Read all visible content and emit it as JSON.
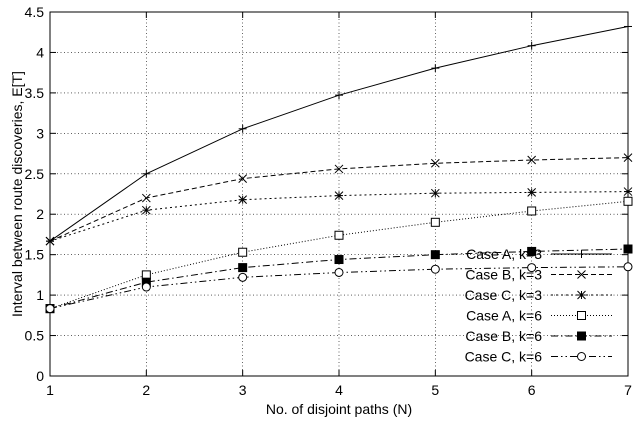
{
  "chart_data": {
    "type": "line",
    "title": "",
    "xlabel": "No. of disjoint paths (N)",
    "ylabel": "Interval between route discoveries, E[T]",
    "xlim": [
      1,
      7
    ],
    "ylim": [
      0,
      4.5
    ],
    "xticks": [
      1,
      2,
      3,
      4,
      5,
      6,
      7
    ],
    "yticks": [
      0,
      0.5,
      1,
      1.5,
      2,
      2.5,
      3,
      3.5,
      4,
      4.5
    ],
    "xtick_labels": [
      "1",
      "2",
      "3",
      "4",
      "5",
      "6",
      "7"
    ],
    "ytick_labels": [
      "0",
      "0.5",
      "1",
      "1.5",
      "2",
      "2.5",
      "3",
      "3.5",
      "4",
      "4.5"
    ],
    "grid": true,
    "legend_position": "bottom-right",
    "x": [
      1,
      2,
      3,
      4,
      5,
      6,
      7
    ],
    "series": [
      {
        "name": "Case A, k=3",
        "values": [
          1.667,
          2.5,
          3.056,
          3.472,
          3.806,
          4.083,
          4.321
        ],
        "marker": "plus",
        "dash": "solid"
      },
      {
        "name": "Case B, k=3",
        "values": [
          1.667,
          2.2,
          2.44,
          2.56,
          2.63,
          2.67,
          2.7
        ],
        "marker": "cross",
        "dash": "dashed"
      },
      {
        "name": "Case C, k=3",
        "values": [
          1.667,
          2.05,
          2.18,
          2.23,
          2.26,
          2.27,
          2.28
        ],
        "marker": "star",
        "dash": "dotted"
      },
      {
        "name": "Case A, k=6",
        "values": [
          0.833,
          1.25,
          1.53,
          1.74,
          1.9,
          2.04,
          2.16
        ],
        "marker": "open-square",
        "dash": "fine-dotted"
      },
      {
        "name": "Case B, k=6",
        "values": [
          0.833,
          1.16,
          1.34,
          1.44,
          1.5,
          1.54,
          1.57
        ],
        "marker": "filled-square",
        "dash": "dash-dot"
      },
      {
        "name": "Case C, k=6",
        "values": [
          0.833,
          1.1,
          1.22,
          1.28,
          1.32,
          1.34,
          1.35
        ],
        "marker": "open-circle",
        "dash": "dash-dot-dot"
      }
    ],
    "colors": {
      "line": "#000000",
      "grid": "#000000",
      "background": "#ffffff"
    }
  }
}
